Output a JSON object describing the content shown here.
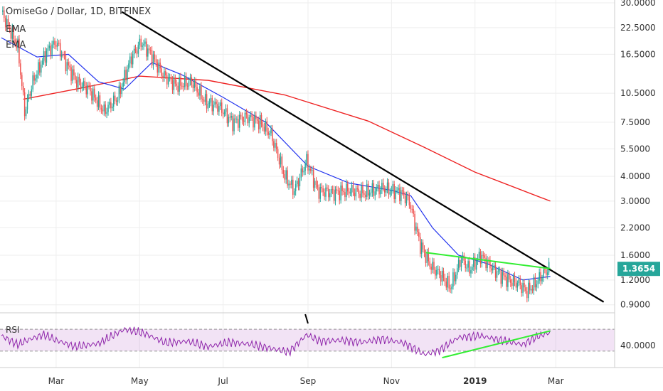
{
  "chart_data": [
    {
      "type": "candlestick",
      "title": "OmiseGo / Dollar, 1D, BITFINEX",
      "legend": [
        "EMA",
        "EMA"
      ],
      "y_scale": "log",
      "ylim": [
        0.82,
        31
      ],
      "y_ticks": [
        "30.0000",
        "22.5000",
        "16.5000",
        "10.5000",
        "7.5000",
        "5.5000",
        "4.0000",
        "3.0000",
        "2.2000",
        "1.6000",
        "1.2000",
        "0.9000"
      ],
      "x_ticks": [
        "Mar",
        "May",
        "Jul",
        "Sep",
        "Nov",
        "2019",
        "Mar"
      ],
      "x_range": [
        "2018-01-19",
        "2019-04-13"
      ],
      "last_price": "1.3654",
      "price_path": [
        [
          "2018-01-20",
          27
        ],
        [
          "2018-02-01",
          18
        ],
        [
          "2018-02-06",
          8.5
        ],
        [
          "2018-02-12",
          12
        ],
        [
          "2018-02-22",
          17
        ],
        [
          "2018-03-01",
          19
        ],
        [
          "2018-03-08",
          15
        ],
        [
          "2018-03-16",
          12
        ],
        [
          "2018-03-25",
          11
        ],
        [
          "2018-04-05",
          8.5
        ],
        [
          "2018-04-15",
          10
        ],
        [
          "2018-04-25",
          16
        ],
        [
          "2018-05-02",
          19
        ],
        [
          "2018-05-08",
          17
        ],
        [
          "2018-05-18",
          13
        ],
        [
          "2018-05-28",
          11.5
        ],
        [
          "2018-06-08",
          12
        ],
        [
          "2018-06-18",
          9.5
        ],
        [
          "2018-06-28",
          9
        ],
        [
          "2018-07-08",
          7.5
        ],
        [
          "2018-07-18",
          8
        ],
        [
          "2018-07-28",
          7.5
        ],
        [
          "2018-08-05",
          6.5
        ],
        [
          "2018-08-15",
          4
        ],
        [
          "2018-08-22",
          3.4
        ],
        [
          "2018-08-31",
          4.8
        ],
        [
          "2018-09-08",
          3.4
        ],
        [
          "2018-09-20",
          3.3
        ],
        [
          "2018-10-01",
          3.4
        ],
        [
          "2018-10-12",
          3.3
        ],
        [
          "2018-10-25",
          3.5
        ],
        [
          "2018-11-08",
          3.3
        ],
        [
          "2018-11-14",
          3.0
        ],
        [
          "2018-11-22",
          1.8
        ],
        [
          "2018-11-30",
          1.4
        ],
        [
          "2018-12-08",
          1.25
        ],
        [
          "2018-12-14",
          1.1
        ],
        [
          "2018-12-22",
          1.55
        ],
        [
          "2018-12-28",
          1.35
        ],
        [
          "2019-01-05",
          1.6
        ],
        [
          "2019-01-15",
          1.35
        ],
        [
          "2019-01-25",
          1.2
        ],
        [
          "2019-02-02",
          1.15
        ],
        [
          "2019-02-08",
          1.05
        ],
        [
          "2019-02-14",
          1.15
        ],
        [
          "2019-02-20",
          1.3
        ],
        [
          "2019-02-24",
          1.37
        ]
      ],
      "ema_fast": [
        [
          "2018-01-20",
          20
        ],
        [
          "2018-02-15",
          16
        ],
        [
          "2018-03-10",
          16.5
        ],
        [
          "2018-04-01",
          12
        ],
        [
          "2018-04-20",
          11
        ],
        [
          "2018-05-10",
          15
        ],
        [
          "2018-06-01",
          13
        ],
        [
          "2018-07-01",
          10
        ],
        [
          "2018-08-01",
          7.5
        ],
        [
          "2018-09-01",
          4.5
        ],
        [
          "2018-10-01",
          3.7
        ],
        [
          "2018-11-01",
          3.4
        ],
        [
          "2018-11-15",
          3.2
        ],
        [
          "2018-12-01",
          2.2
        ],
        [
          "2018-12-20",
          1.6
        ],
        [
          "2019-01-10",
          1.45
        ],
        [
          "2019-02-05",
          1.2
        ],
        [
          "2019-02-25",
          1.25
        ]
      ],
      "ema_slow": [
        [
          "2018-02-05",
          9.8
        ],
        [
          "2018-03-15",
          11
        ],
        [
          "2018-05-01",
          12.8
        ],
        [
          "2018-06-20",
          12.2
        ],
        [
          "2018-08-15",
          10.3
        ],
        [
          "2018-10-15",
          7.6
        ],
        [
          "2018-11-25",
          5.6
        ],
        [
          "2019-01-01",
          4.2
        ],
        [
          "2019-02-25",
          3.0
        ]
      ],
      "trendlines": [
        {
          "color": "#000000",
          "from": [
            "2018-04-18",
            27
          ],
          "to": [
            "2019-04-05",
            0.93
          ]
        },
        {
          "color": "#33ee33",
          "from": [
            "2018-11-26",
            1.65
          ],
          "to": [
            "2019-02-25",
            1.37
          ]
        }
      ],
      "colors": {
        "up": "#26a69a",
        "down": "#ef5350",
        "ema_fast": "#2233ee",
        "ema_slow": "#ee2222",
        "price_tag": "#26a69a"
      }
    },
    {
      "type": "line",
      "title": "RSI",
      "ylim": [
        0,
        100
      ],
      "y_ticks": [
        "40.0000"
      ],
      "bands": [
        30,
        70
      ],
      "rsi_path": [
        [
          "2018-01-20",
          58
        ],
        [
          "2018-02-01",
          42
        ],
        [
          "2018-02-10",
          52
        ],
        [
          "2018-02-20",
          60
        ],
        [
          "2018-03-01",
          50
        ],
        [
          "2018-03-15",
          38
        ],
        [
          "2018-04-01",
          44
        ],
        [
          "2018-04-20",
          70
        ],
        [
          "2018-05-05",
          62
        ],
        [
          "2018-05-20",
          45
        ],
        [
          "2018-06-05",
          48
        ],
        [
          "2018-06-20",
          38
        ],
        [
          "2018-07-05",
          46
        ],
        [
          "2018-07-20",
          43
        ],
        [
          "2018-08-05",
          35
        ],
        [
          "2018-08-18",
          28
        ],
        [
          "2018-08-31",
          60
        ],
        [
          "2018-09-10",
          48
        ],
        [
          "2018-09-25",
          50
        ],
        [
          "2018-10-10",
          46
        ],
        [
          "2018-10-25",
          52
        ],
        [
          "2018-11-10",
          45
        ],
        [
          "2018-11-25",
          24
        ],
        [
          "2018-12-05",
          30
        ],
        [
          "2018-12-20",
          55
        ],
        [
          "2019-01-05",
          58
        ],
        [
          "2019-01-20",
          50
        ],
        [
          "2019-02-05",
          42
        ],
        [
          "2019-02-15",
          56
        ],
        [
          "2019-02-25",
          64
        ]
      ],
      "trendline": {
        "color": "#33ee33",
        "from": [
          "2018-12-08",
          18
        ],
        "to": [
          "2019-02-25",
          67
        ]
      }
    }
  ]
}
